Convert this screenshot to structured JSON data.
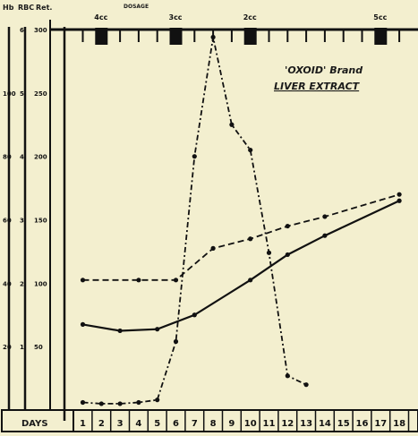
{
  "chart_data": {
    "type": "line",
    "title_line1": "'OXOID' Brand",
    "title_line2": "LIVER EXTRACT",
    "axis_headers": {
      "hb": "Hb",
      "rbc": "RBC",
      "ret": "Ret."
    },
    "dosage_label": "DOSAGE",
    "injections": [
      {
        "day": 2,
        "label": "4cc"
      },
      {
        "day": 6,
        "label": "3cc"
      },
      {
        "day": 10,
        "label": "2cc"
      },
      {
        "day": 17,
        "label": "5cc"
      }
    ],
    "x_label": "DAYS",
    "x": [
      1,
      2,
      3,
      4,
      5,
      6,
      7,
      8,
      9,
      10,
      11,
      12,
      13,
      14,
      15,
      16,
      17,
      18
    ],
    "axes": {
      "hb": {
        "ticks": [
          20,
          40,
          60,
          80,
          100
        ],
        "ylim": [
          0,
          120
        ]
      },
      "rbc": {
        "ticks": [
          1,
          2,
          3,
          4,
          5,
          6
        ],
        "ylim": [
          0,
          6
        ]
      },
      "ret": {
        "ticks": [
          50,
          100,
          150,
          200,
          250,
          300
        ],
        "ylim": [
          0,
          300
        ]
      }
    },
    "series": [
      {
        "style": "dash-dot",
        "axis": "ret",
        "points": [
          [
            1,
            6
          ],
          [
            2,
            5
          ],
          [
            3,
            5
          ],
          [
            4,
            6
          ],
          [
            5,
            8
          ],
          [
            6,
            54
          ],
          [
            7,
            200
          ],
          [
            8,
            294
          ],
          [
            9,
            225
          ],
          [
            10,
            205
          ],
          [
            11,
            124
          ],
          [
            12,
            27
          ],
          [
            13,
            20
          ]
        ]
      },
      {
        "style": "dashed",
        "axis": "hb",
        "points": [
          [
            1,
            41
          ],
          [
            4,
            41
          ],
          [
            6,
            41
          ],
          [
            8,
            51
          ],
          [
            10,
            54
          ],
          [
            12,
            58
          ],
          [
            14,
            61
          ],
          [
            18,
            68
          ]
        ]
      },
      {
        "style": "solid",
        "axis": "hb",
        "points": [
          [
            1,
            27
          ],
          [
            3,
            25
          ],
          [
            5,
            25.5
          ],
          [
            7,
            30
          ],
          [
            10,
            41
          ],
          [
            12,
            49
          ],
          [
            14,
            55
          ],
          [
            18,
            66
          ]
        ]
      }
    ]
  }
}
